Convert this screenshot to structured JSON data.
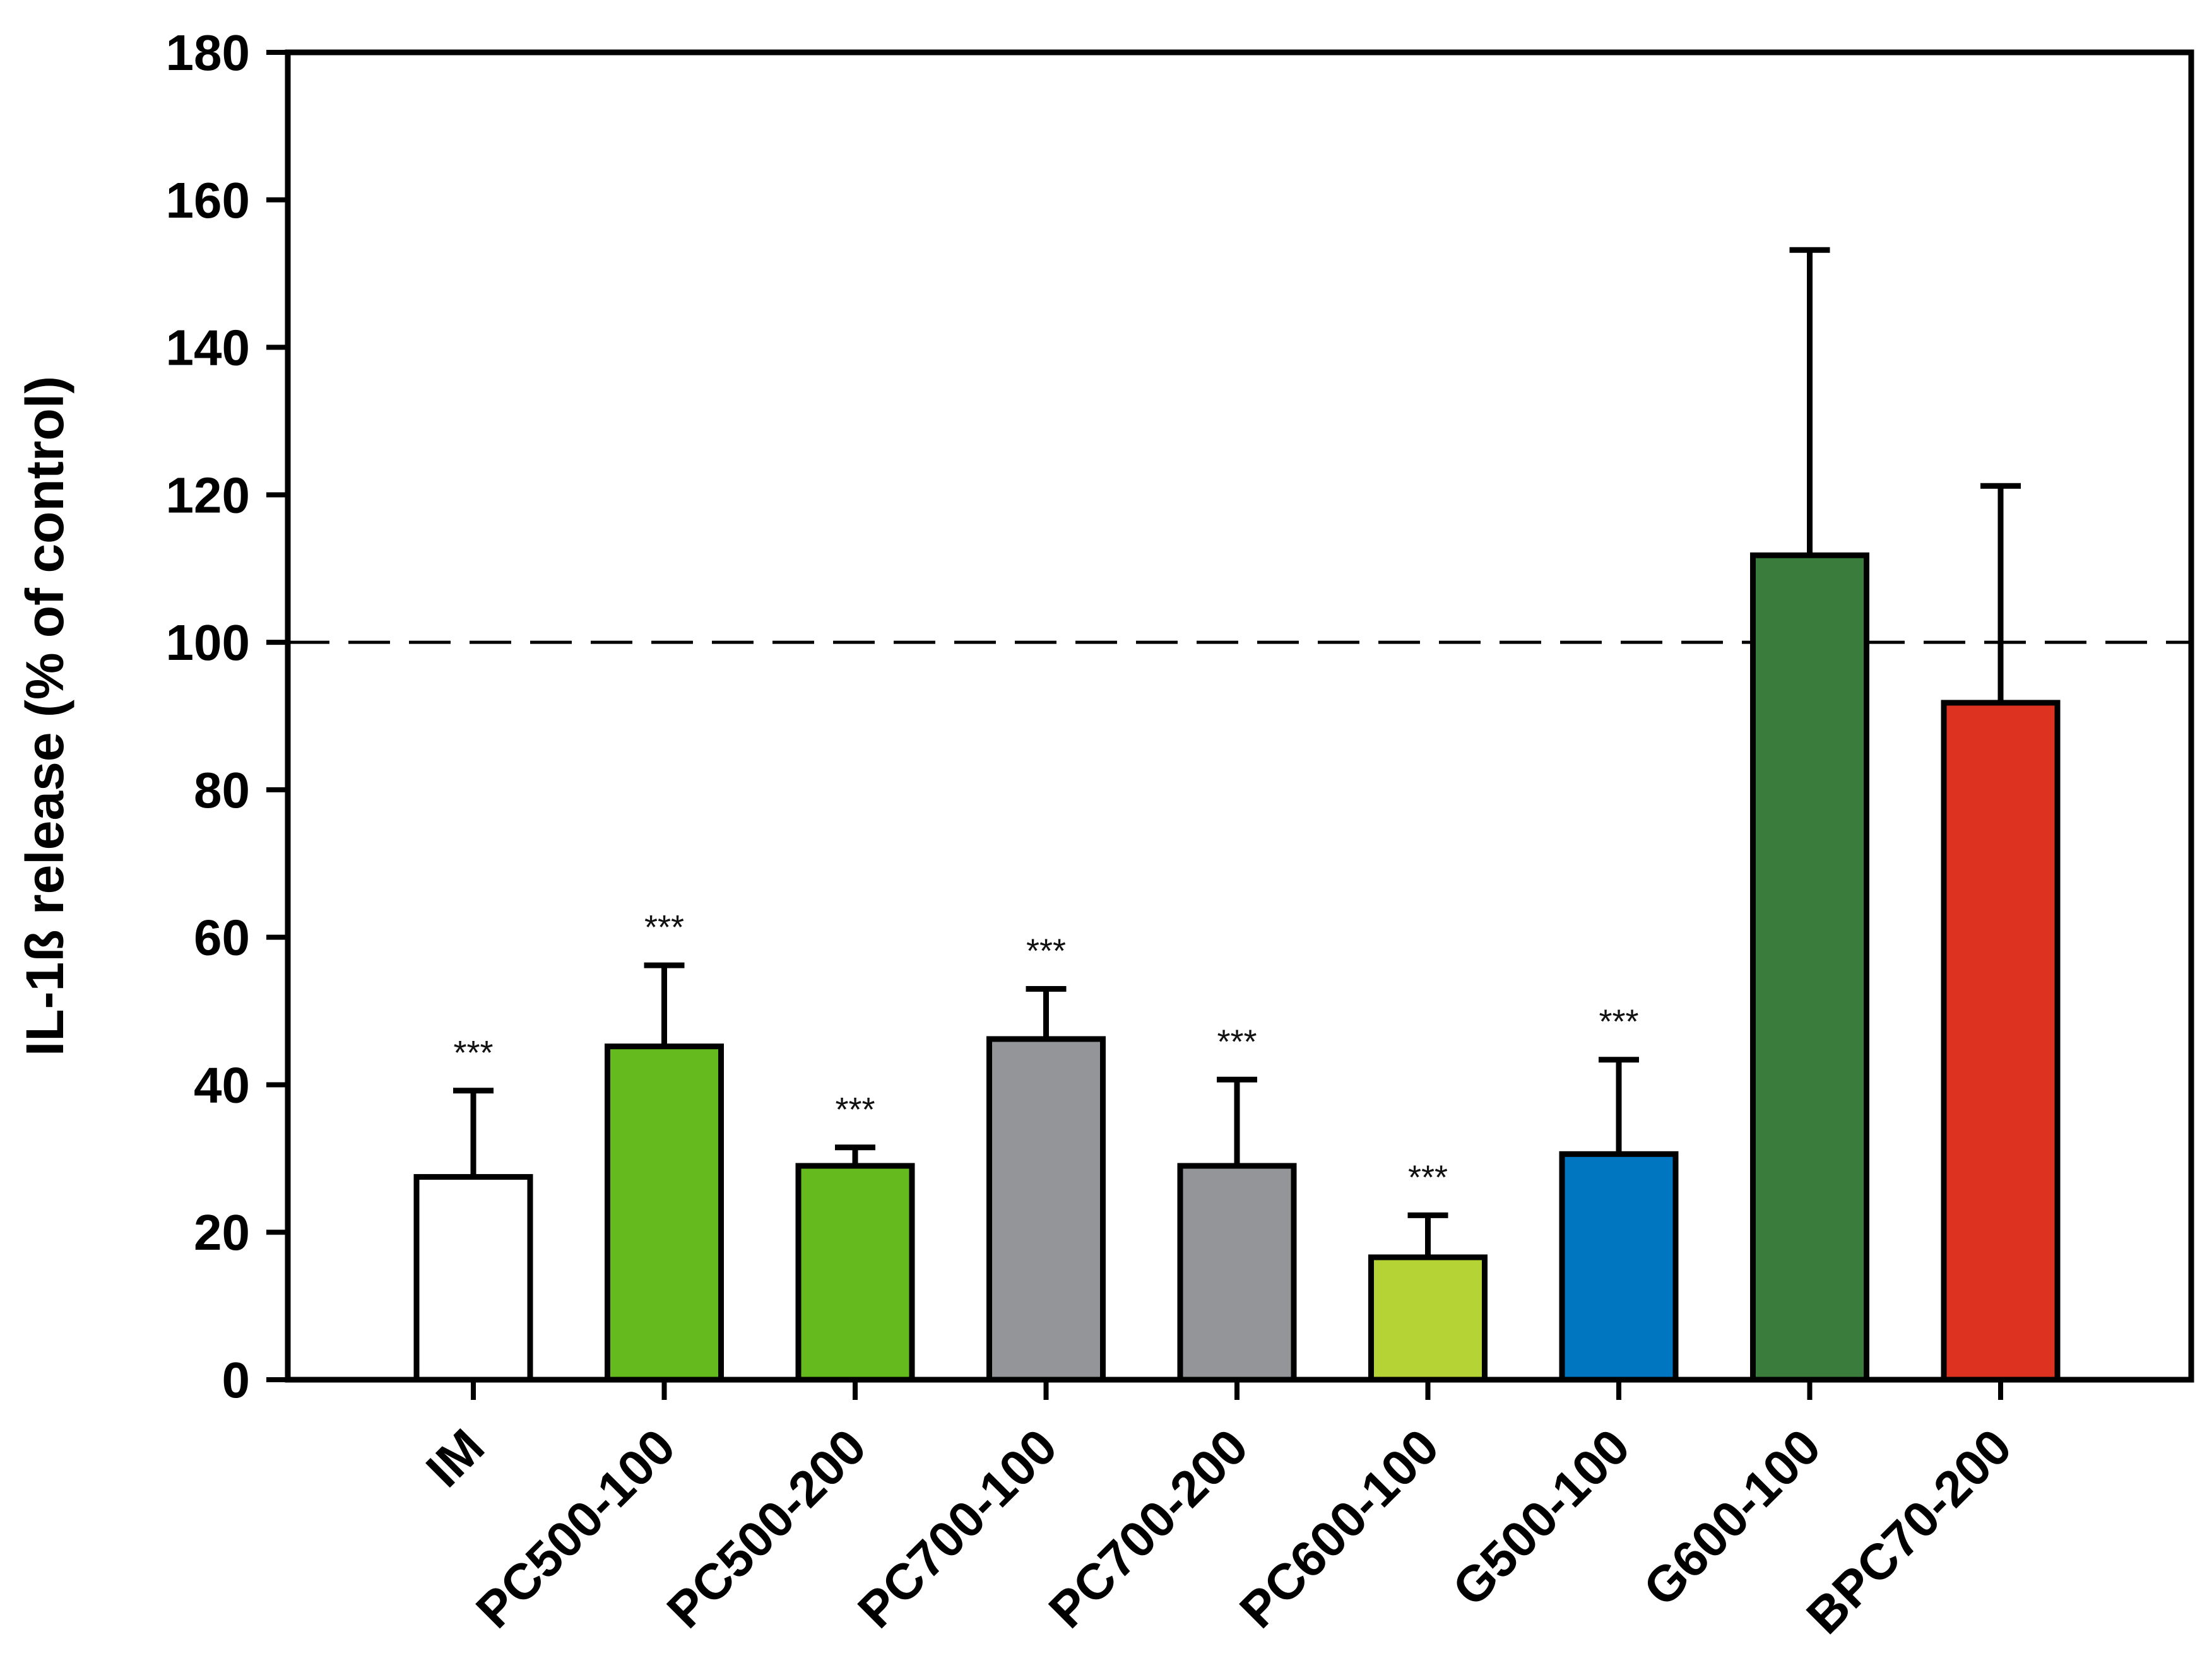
{
  "chart_data": {
    "type": "bar",
    "title": "",
    "xlabel": "",
    "ylabel": "IL-1ß release (% of control)",
    "ylim": [
      0,
      180
    ],
    "yticks": [
      0,
      20,
      40,
      60,
      80,
      100,
      120,
      140,
      160,
      180
    ],
    "grid": false,
    "legend": "none",
    "reference_line": {
      "value": 100,
      "style": "dashed"
    },
    "categories": [
      "IM",
      "PC500-100",
      "PC500-200",
      "PC700-100",
      "PC700-200",
      "PC600-100",
      "G500-100",
      "G600-100",
      "BPC70-200"
    ],
    "values": [
      27.5,
      45.2,
      29.0,
      46.2,
      29.0,
      16.6,
      30.6,
      111.8,
      91.8
    ],
    "errors": [
      11.7,
      11.0,
      2.5,
      6.8,
      11.7,
      5.7,
      12.8,
      41.4,
      29.4
    ],
    "significance": [
      "***",
      "***",
      "***",
      "***",
      "***",
      "***",
      "***",
      "",
      ""
    ],
    "colors": [
      "#ffffff",
      "#65bb1d",
      "#65bb1d",
      "#939598",
      "#939598",
      "#b5d334",
      "#0075c0",
      "#397c3b",
      "#dd3220"
    ]
  }
}
